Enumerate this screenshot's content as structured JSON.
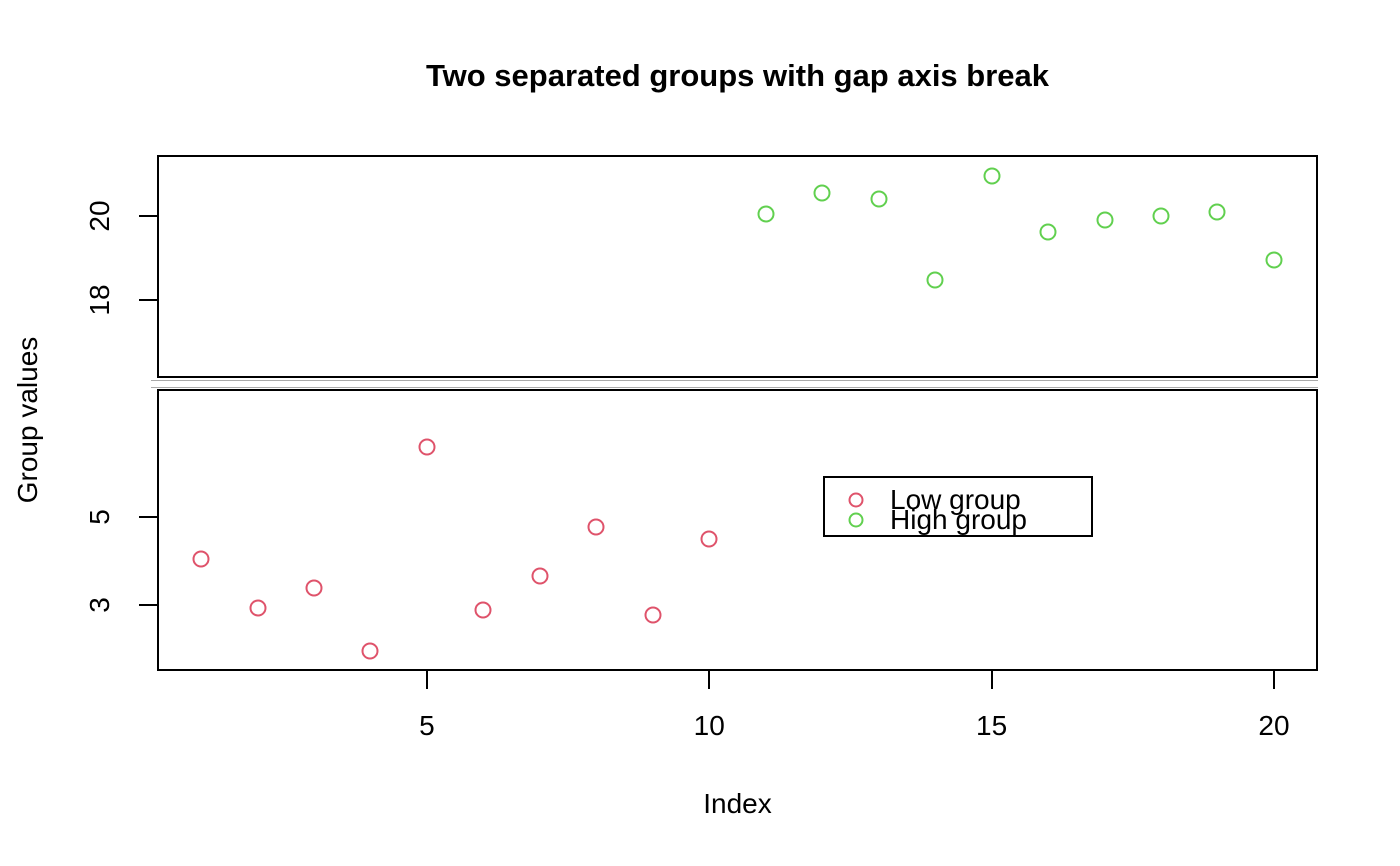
{
  "figure": {
    "title": "Two separated groups with gap axis break",
    "xlabel": "Index",
    "ylabel": "Group values"
  },
  "legend": {
    "entries": [
      {
        "label": "Low group",
        "color": "#DF536B"
      },
      {
        "label": "High group",
        "color": "#61D04F"
      }
    ]
  },
  "chart_data": {
    "type": "scatter",
    "title": "Two separated groups with gap axis break",
    "xlabel": "Index",
    "ylabel": "Group values",
    "marker": "open-circle",
    "grid": false,
    "legend_position": "center-right of lower panel",
    "axis_break": {
      "axis": "y",
      "style": "gap",
      "between": [
        7.9,
        16.2
      ]
    },
    "xlim": [
      0.22,
      20.78
    ],
    "x_ticks": [
      5,
      10,
      15,
      20
    ],
    "top_panel": {
      "ylim": [
        16.15,
        21.45
      ],
      "y_ticks": [
        18,
        20
      ]
    },
    "bottom_panel": {
      "ylim": [
        1.5,
        7.92
      ],
      "y_ticks": [
        3,
        5
      ]
    },
    "series": [
      {
        "name": "Low group",
        "color": "#DF536B",
        "panel": "bottom",
        "x": [
          1,
          2,
          3,
          4,
          5,
          6,
          7,
          8,
          9,
          10
        ],
        "y": [
          4.06,
          2.93,
          3.39,
          1.96,
          6.59,
          2.89,
          3.67,
          4.78,
          2.77,
          4.51
        ]
      },
      {
        "name": "High group",
        "color": "#61D04F",
        "panel": "top",
        "x": [
          11,
          12,
          13,
          14,
          15,
          16,
          17,
          18,
          19,
          20
        ],
        "y": [
          20.05,
          20.55,
          20.4,
          18.48,
          20.95,
          19.62,
          19.9,
          20.0,
          20.1,
          18.95
        ]
      }
    ]
  }
}
